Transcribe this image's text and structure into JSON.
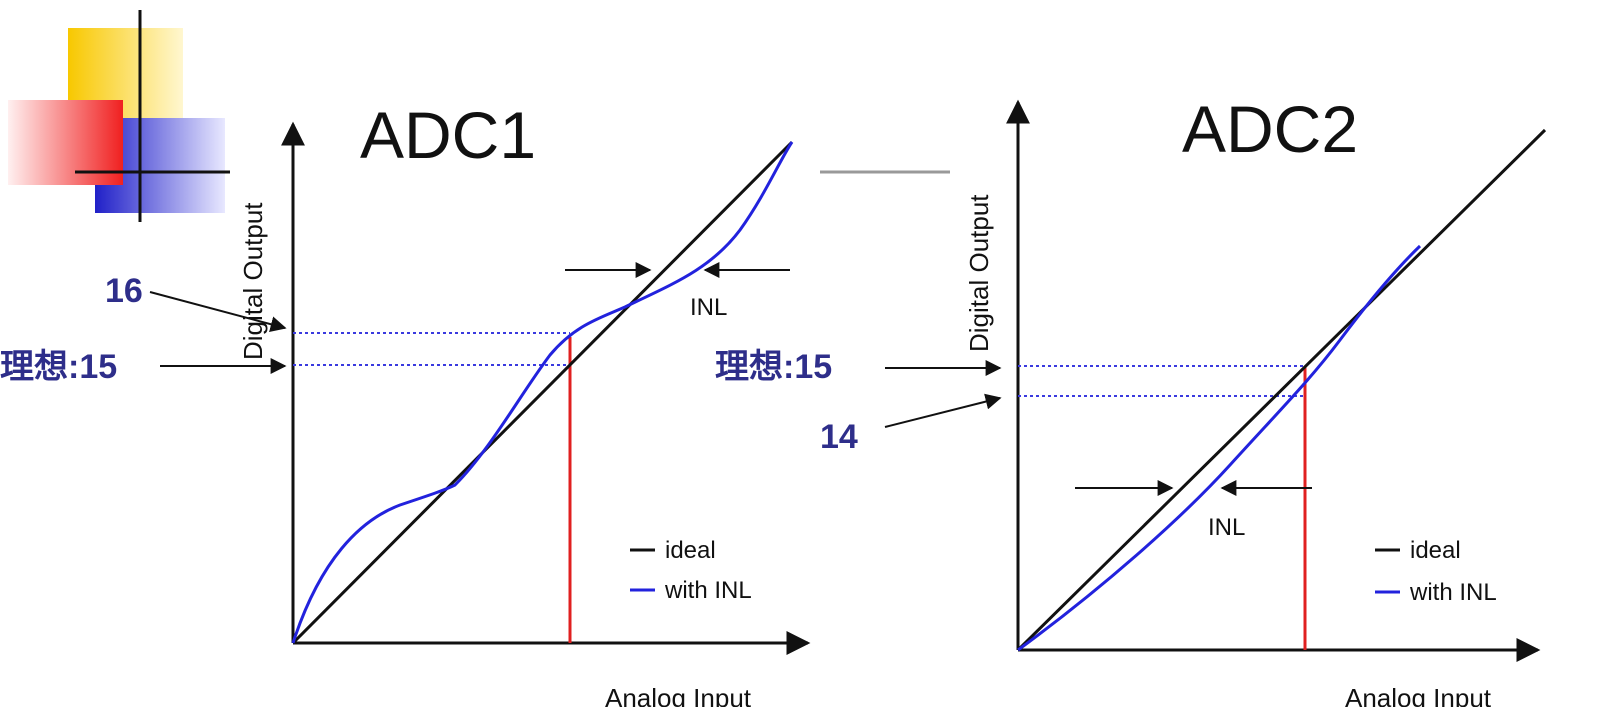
{
  "panels": [
    {
      "title": "ADC1",
      "y_axis_label": "Digital Output",
      "x_axis_label": "Analog Input",
      "inl_label": "INL",
      "legend": [
        "ideal",
        "with INL"
      ],
      "annotations": [
        "16",
        "理想:15"
      ]
    },
    {
      "title": "ADC2",
      "y_axis_label": "Digital Output",
      "x_axis_label": "Analog Input",
      "inl_label": "INL",
      "legend": [
        "ideal",
        "with INL"
      ],
      "annotations": [
        "理想:15",
        "14"
      ]
    }
  ]
}
